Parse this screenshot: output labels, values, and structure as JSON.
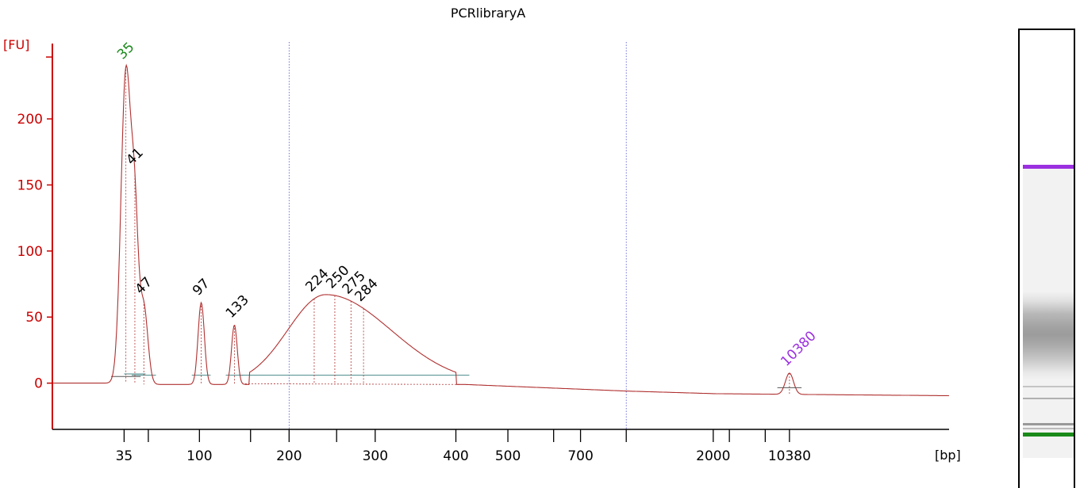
{
  "chart_data": {
    "type": "line",
    "title": "PCRlibraryA",
    "ylabel": "[FU]",
    "xlabel": "[bp]",
    "ylim": [
      -35,
      260
    ],
    "yticks": [
      0,
      50,
      100,
      150,
      200
    ],
    "xtick_labels": [
      {
        "label": "35",
        "pos": 0.08
      },
      {
        "label": "",
        "pos": 0.107
      },
      {
        "label": "100",
        "pos": 0.164
      },
      {
        "label": "",
        "pos": 0.221
      },
      {
        "label": "200",
        "pos": 0.264
      },
      {
        "label": "",
        "pos": 0.317
      },
      {
        "label": "300",
        "pos": 0.36
      },
      {
        "label": "400",
        "pos": 0.45
      },
      {
        "label": "500",
        "pos": 0.508
      },
      {
        "label": "",
        "pos": 0.559
      },
      {
        "label": "700",
        "pos": 0.589
      },
      {
        "label": "",
        "pos": 0.64
      },
      {
        "label": "2000",
        "pos": 0.737
      },
      {
        "label": "",
        "pos": 0.755
      },
      {
        "label": "",
        "pos": 0.795
      },
      {
        "label": "10380",
        "pos": 0.822
      }
    ],
    "vlines": [
      0.264,
      0.64
    ],
    "peaks": [
      {
        "label": "35",
        "pos": 0.082,
        "height": 235,
        "width": 0.0055,
        "color": "#1a8a1a",
        "marker": true
      },
      {
        "label": "41",
        "pos": 0.092,
        "height": 110,
        "width": 0.004,
        "color": "#000000",
        "marker": false
      },
      {
        "label": "47",
        "pos": 0.102,
        "height": 58,
        "width": 0.0045,
        "color": "#000000",
        "marker": false
      },
      {
        "label": "97",
        "pos": 0.166,
        "height": 62,
        "width": 0.0035,
        "color": "#000000",
        "marker": false
      },
      {
        "label": "133",
        "pos": 0.203,
        "height": 45,
        "width": 0.0032,
        "color": "#000000",
        "marker": false
      },
      {
        "label": "224",
        "pos": 0.292,
        "height": 67,
        "width": 0,
        "color": "#000000",
        "marker": false
      },
      {
        "label": "250",
        "pos": 0.315,
        "height": 67,
        "width": 0,
        "color": "#000000",
        "marker": false
      },
      {
        "label": "275",
        "pos": 0.333,
        "height": 67,
        "width": 0,
        "color": "#000000",
        "marker": false
      },
      {
        "label": "284",
        "pos": 0.347,
        "height": 67,
        "width": 0,
        "color": "#000000",
        "marker": false
      },
      {
        "label": "10380",
        "pos": 0.822,
        "height": 16,
        "width": 0.0045,
        "color": "#9b30e0",
        "marker": true
      }
    ],
    "smear": {
      "start": 0.22,
      "peak": 0.305,
      "end": 0.45,
      "height": 68
    },
    "colors": {
      "axis": "#cc0000",
      "trace": "#b03030",
      "vline": "#5050d0",
      "baseline": "#4a8a8a"
    },
    "gel": {
      "bands": [
        {
          "name": "upper-marker",
          "pos": 0.298,
          "color": "#9b30e0",
          "thickness": 5
        },
        {
          "name": "band-a",
          "pos": 0.776,
          "color": "#c4c4c4",
          "thickness": 2
        },
        {
          "name": "band-b",
          "pos": 0.802,
          "color": "#b0b0b0",
          "thickness": 2
        },
        {
          "name": "band-c",
          "pos": 0.858,
          "color": "#999999",
          "thickness": 3
        },
        {
          "name": "band-d",
          "pos": 0.868,
          "color": "#bbbbbb",
          "thickness": 2
        },
        {
          "name": "lower-marker",
          "pos": 0.88,
          "color": "#1a8a1a",
          "thickness": 5
        }
      ]
    }
  }
}
